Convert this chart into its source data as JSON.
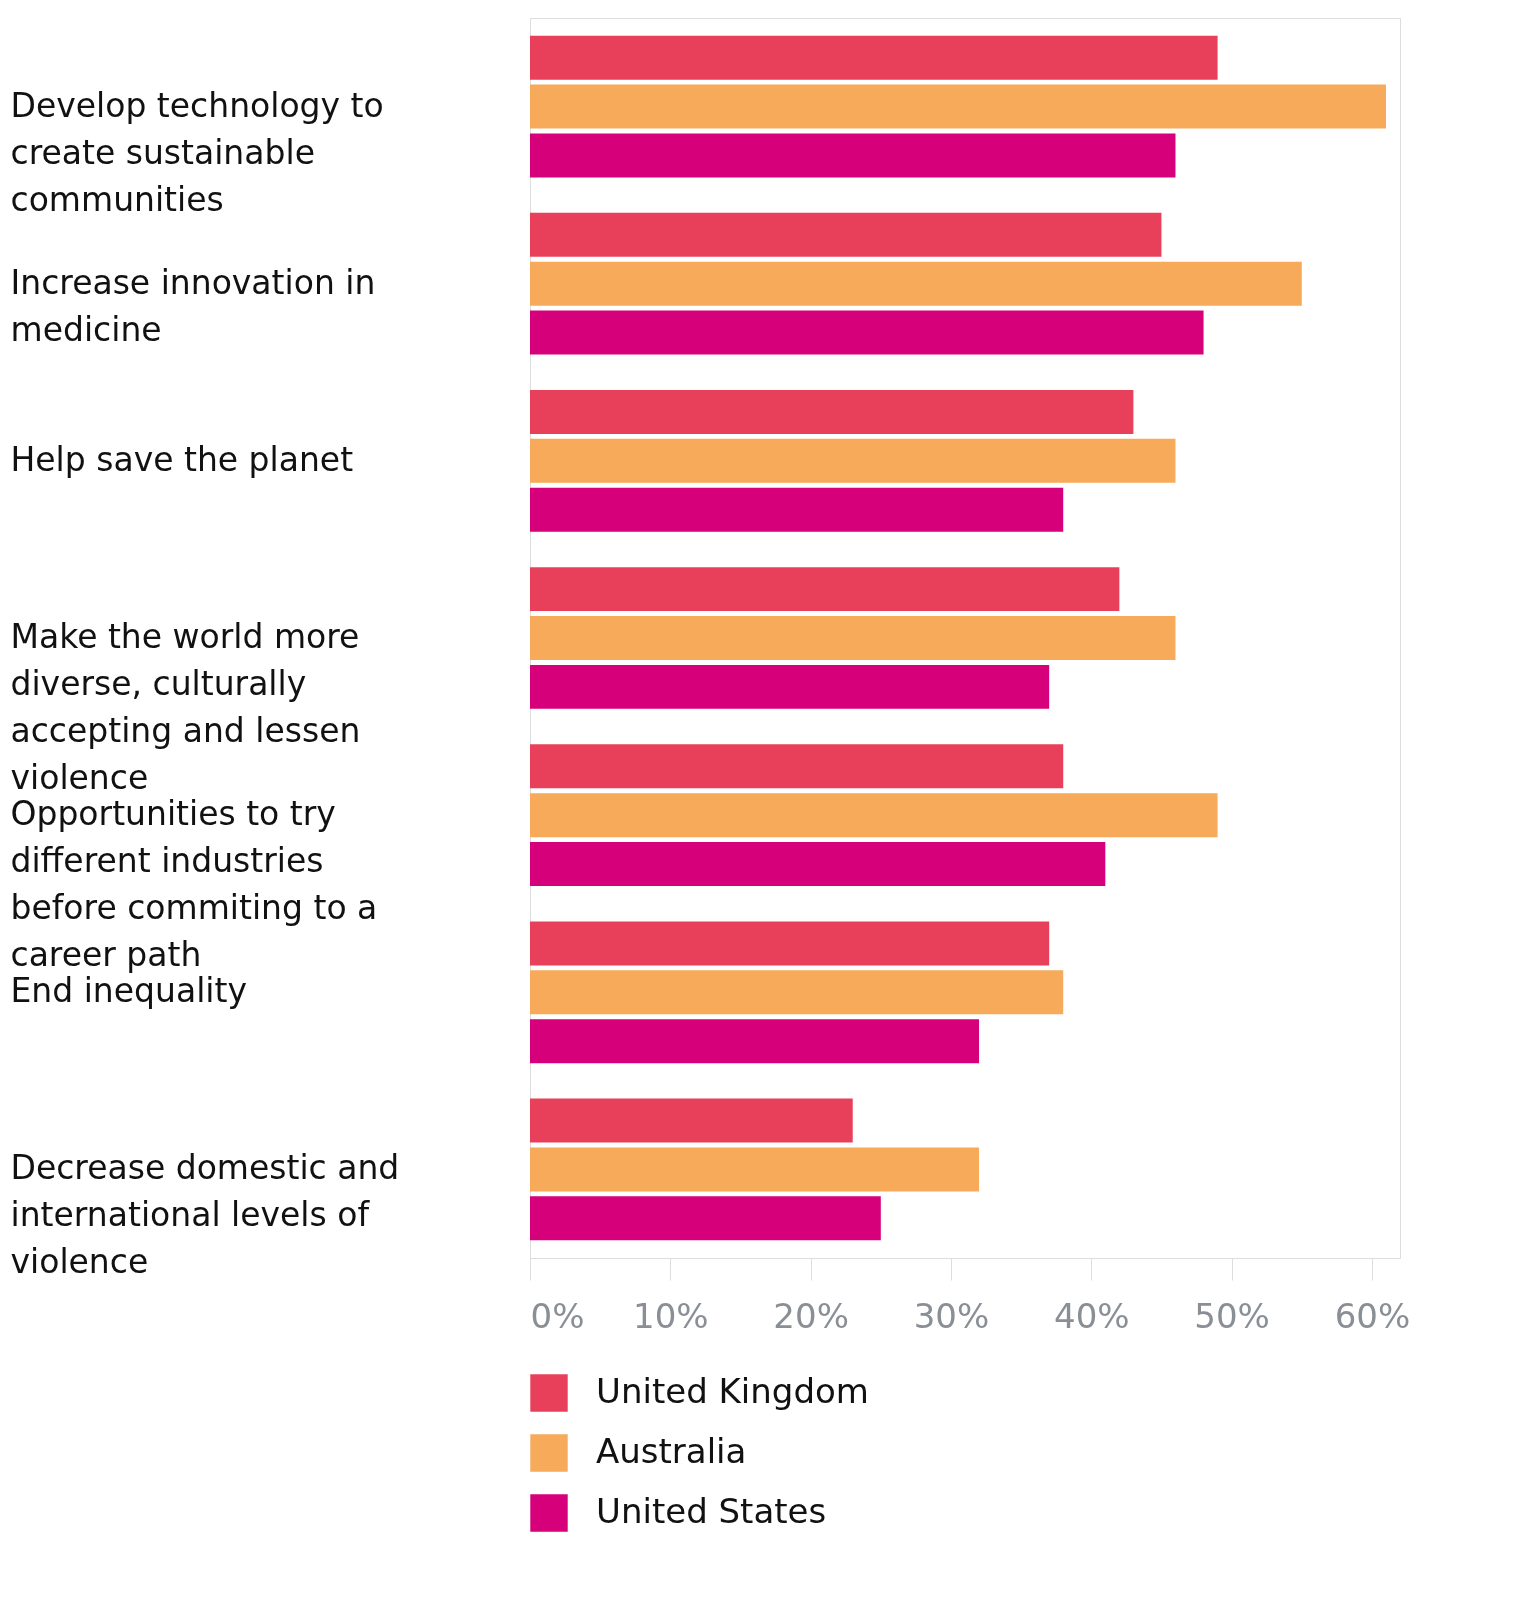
{
  "chart_data": {
    "type": "bar",
    "orientation": "horizontal",
    "categories": [
      "Develop technology to create sustainable communities",
      "Increase innovation in medicine",
      "Help save the planet",
      "Make the world more diverse, culturally accepting and lessen violence",
      "Opportunities to try different industries before commiting to a career path",
      "End inequality",
      "Decrease domestic and international levels of violence"
    ],
    "series": [
      {
        "name": "United Kingdom",
        "color": "#e8405a",
        "values": [
          49,
          45,
          43,
          42,
          38,
          37,
          23
        ]
      },
      {
        "name": "Australia",
        "color": "#f6aa5a",
        "values": [
          61,
          55,
          46,
          46,
          49,
          38,
          32
        ]
      },
      {
        "name": "United States",
        "color": "#d6007b",
        "values": [
          46,
          48,
          38,
          37,
          41,
          32,
          25
        ]
      }
    ],
    "xlim": [
      0,
      62
    ],
    "xticks": [
      {
        "value": 0,
        "label": "0%"
      },
      {
        "value": 10,
        "label": "10%"
      },
      {
        "value": 20,
        "label": "20%"
      },
      {
        "value": 30,
        "label": "30%"
      },
      {
        "value": 40,
        "label": "40%"
      },
      {
        "value": 50,
        "label": "50%"
      },
      {
        "value": 60,
        "label": "60%"
      }
    ],
    "grid": false,
    "legend": "bottom left"
  }
}
